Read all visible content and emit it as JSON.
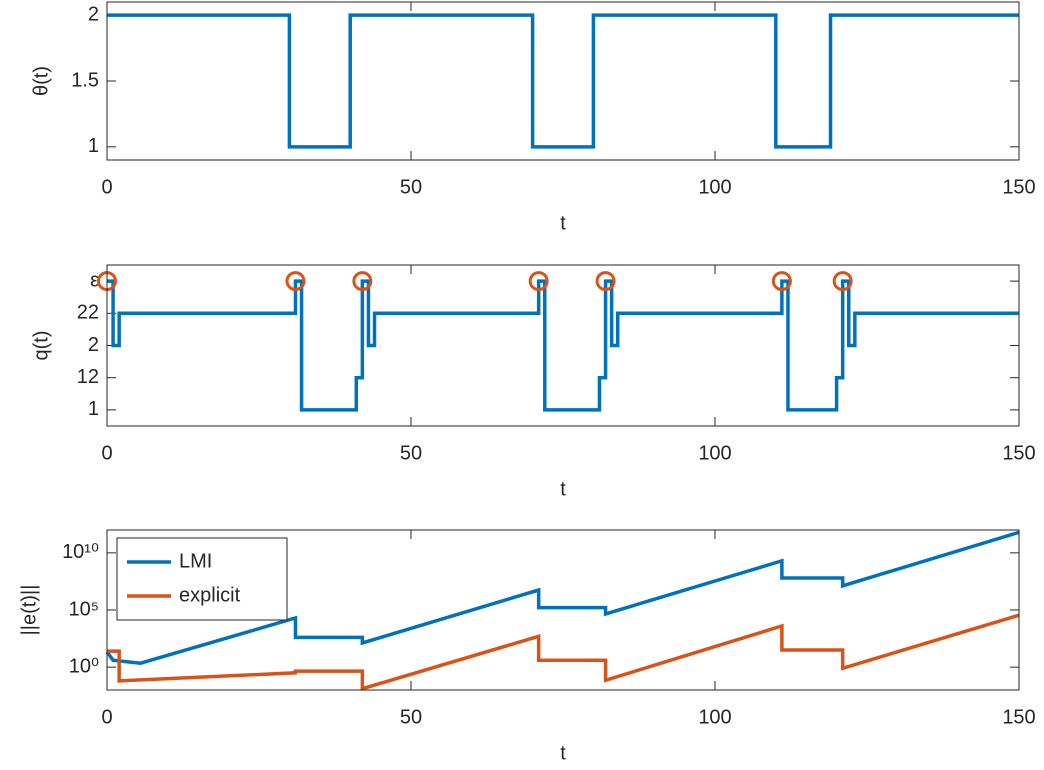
{
  "chart_data": [
    {
      "type": "line",
      "xlabel": "t",
      "ylabel": "θ(t)",
      "xlim": [
        0,
        150
      ],
      "xticks": [
        0,
        50,
        100,
        150
      ],
      "ylim": [
        0.9,
        2.1
      ],
      "yticks": [
        1,
        1.5,
        2
      ],
      "series": [
        {
          "color": "#0072BD",
          "x": [
            0,
            30,
            30,
            40,
            40,
            70,
            70,
            80,
            80,
            110,
            110,
            119,
            119,
            150
          ],
          "values": [
            2,
            2,
            1,
            1,
            2,
            2,
            1,
            1,
            2,
            2,
            1,
            1,
            2,
            2
          ]
        }
      ]
    },
    {
      "type": "line",
      "xlabel": "t",
      "ylabel": "q(t)",
      "xlim": [
        0,
        150
      ],
      "xticks": [
        0,
        50,
        100,
        150
      ],
      "ylim": [
        0.5,
        5.5
      ],
      "yticks": [
        1,
        {
          "value": 2,
          "label": "12"
        },
        {
          "value": 3,
          "label": "2"
        },
        {
          "value": 4,
          "label": "22"
        },
        {
          "value": 5,
          "label": "ε"
        }
      ],
      "series": [
        {
          "color": "#0072BD",
          "x": [
            0,
            1,
            1,
            2,
            2,
            31,
            31,
            32,
            32,
            41,
            41,
            42,
            42,
            43,
            43,
            44,
            44,
            71,
            71,
            72,
            72,
            81,
            81,
            82,
            82,
            83,
            83,
            84,
            84,
            111,
            111,
            112,
            112,
            120,
            120,
            121,
            121,
            122,
            122,
            123,
            123,
            150
          ],
          "values": [
            5,
            5,
            3,
            3,
            4,
            4,
            5,
            5,
            1,
            1,
            2,
            2,
            5,
            5,
            3,
            3,
            4,
            4,
            5,
            5,
            1,
            1,
            2,
            2,
            5,
            5,
            3,
            3,
            4,
            4,
            5,
            5,
            1,
            1,
            2,
            2,
            5,
            5,
            3,
            3,
            4,
            4
          ]
        },
        {
          "color": "#D95319",
          "marker": "o",
          "line": false,
          "x": [
            0,
            31,
            42,
            71,
            82,
            111,
            121
          ],
          "values": [
            5,
            5,
            5,
            5,
            5,
            5,
            5
          ]
        }
      ]
    },
    {
      "type": "line",
      "xlabel": "t",
      "ylabel": "||e(t)||",
      "log_y": true,
      "legend": "upper left",
      "xlim": [
        0,
        150
      ],
      "xticks": [
        0,
        50,
        100,
        150
      ],
      "ylim": [
        0.01,
        1000000000000
      ],
      "yticks": [
        {
          "value": 1,
          "label": "10⁰"
        },
        {
          "value": 100000,
          "label": "10⁵"
        },
        {
          "value": 10000000000,
          "label": "10¹⁰"
        }
      ],
      "series": [
        {
          "name": "LMI",
          "color": "#0072BD",
          "x": [
            0,
            1,
            5.5,
            31,
            31,
            42,
            42,
            71,
            71,
            82,
            82,
            111,
            111,
            121,
            121,
            150
          ],
          "values": [
            22,
            4,
            2.2,
            20000,
            400,
            400,
            130,
            5600000,
            160000,
            160000,
            45000,
            2000000000,
            63000000,
            63000000,
            13000000,
            630000000000
          ]
        },
        {
          "name": "explicit",
          "color": "#D95319",
          "x": [
            0,
            2,
            2,
            31,
            31,
            42,
            42,
            71,
            71,
            82,
            82,
            111,
            111,
            121,
            121,
            150
          ],
          "values": [
            25,
            25,
            0.063,
            0.32,
            0.45,
            0.45,
            0.013,
            500,
            4,
            4,
            0.071,
            4000,
            32,
            32,
            0.8,
            35000
          ]
        }
      ]
    }
  ]
}
